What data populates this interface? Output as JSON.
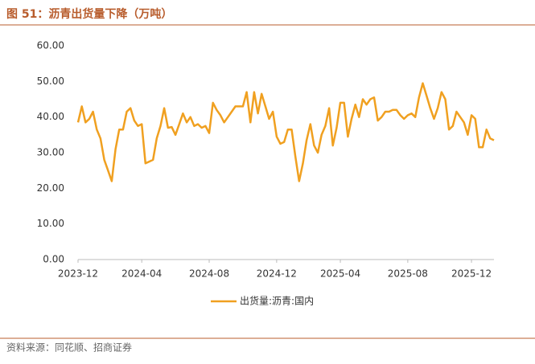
{
  "chart_data": {
    "type": "line",
    "title": "图 51：沥青出货量下降（万吨）",
    "source": "资料来源：同花顺、招商证券",
    "categories": [
      null,
      null,
      null,
      null,
      null,
      null,
      null,
      null,
      null,
      null,
      null,
      null,
      null,
      null,
      null,
      null,
      null,
      "2024-04",
      null,
      null,
      null,
      null,
      null,
      null,
      null,
      null,
      null,
      null,
      null,
      null,
      null,
      null,
      null,
      null,
      null,
      "2024-08",
      null,
      null,
      null,
      null,
      null,
      null,
      null,
      null,
      null,
      null,
      null,
      null,
      null,
      null,
      null,
      null,
      null,
      "2024-12",
      null,
      null,
      null,
      null,
      null,
      null,
      null,
      null,
      null,
      null,
      null,
      null,
      null,
      null,
      null,
      null,
      "2025-04",
      null,
      null,
      null,
      null,
      null,
      null,
      null,
      null,
      null,
      null,
      null,
      null,
      null,
      null,
      null,
      null,
      null,
      "2025-08",
      null,
      null,
      null,
      null,
      null,
      null,
      null,
      null,
      null,
      null,
      null,
      null,
      null,
      null,
      null,
      null,
      "2025-12",
      null,
      null,
      null,
      null,
      null,
      null
    ],
    "first_category": "2023-12",
    "series": [
      {
        "name": "出货量:沥青:国内",
        "color": "#f0a020",
        "values": [
          38.5,
          43,
          38.5,
          39.5,
          41.5,
          36.5,
          34,
          28,
          25,
          22,
          31,
          36.5,
          36.5,
          41.5,
          42.5,
          39,
          37.5,
          38,
          27,
          27.5,
          28,
          34,
          37.5,
          42.5,
          37,
          37.2,
          35,
          38,
          41,
          38.5,
          40,
          37.5,
          38,
          37,
          37.5,
          35.5,
          44,
          42,
          40.5,
          38.5,
          40,
          41.5,
          43,
          43,
          43,
          47,
          38.5,
          47,
          41,
          46.5,
          43,
          39.5,
          41.5,
          34.5,
          32.5,
          33,
          36.5,
          36.5,
          29,
          22,
          27,
          33.5,
          38,
          32,
          30,
          35,
          37.5,
          42.5,
          32,
          37,
          44,
          44,
          34.5,
          39.5,
          43.5,
          40,
          45,
          43.5,
          45,
          45.5,
          39,
          40,
          41.5,
          41.5,
          42,
          42,
          40.5,
          39.5,
          40.5,
          41,
          40,
          45.5,
          49.5,
          46,
          42.5,
          39.5,
          42.5,
          47,
          45,
          36.5,
          37.5,
          41.5,
          40,
          38.5,
          35,
          40.5,
          39.5,
          31.5,
          31.5,
          36.5,
          34,
          33.5
        ]
      }
    ],
    "ylim": [
      0,
      60
    ],
    "yticks": [
      {
        "value": 0,
        "label": "0.00"
      },
      {
        "value": 10,
        "label": "10.00"
      },
      {
        "value": 20,
        "label": "20.00"
      },
      {
        "value": 30,
        "label": "30.00"
      },
      {
        "value": 40,
        "label": "40.00"
      },
      {
        "value": 50,
        "label": "50.00"
      },
      {
        "value": 60,
        "label": "60.00"
      }
    ],
    "grid": false
  }
}
